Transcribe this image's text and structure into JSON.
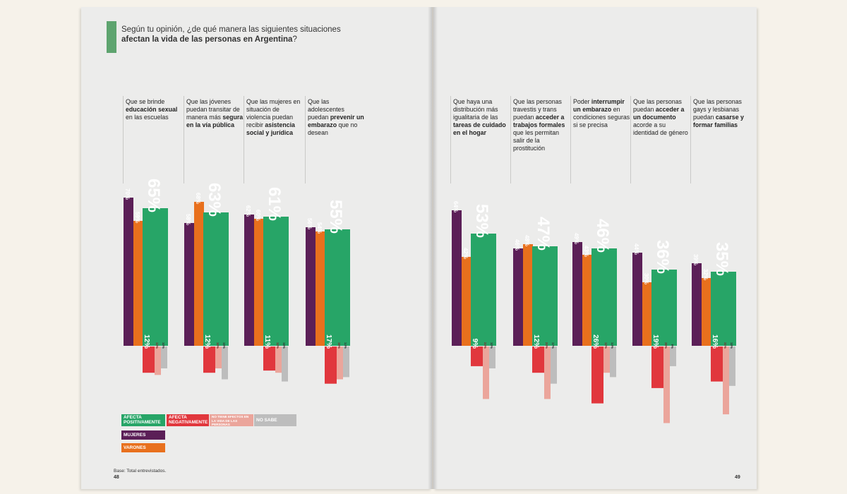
{
  "title": {
    "line1": "Según tu opinión, ¿de qué manera las siguientes situaciones",
    "line2_bold": "afectan la vida de las personas en Argentina",
    "line2_end": "?"
  },
  "base_note": "Base: Total entrevistados.",
  "page_left": "48",
  "page_right": "49",
  "legend": {
    "positive": "AFECTA POSITIVAMENTE",
    "negative": "AFECTA NEGATIVAMENTE",
    "no_effect": "NO TIENE EFECTOS EN LA VIDA DE LAS PERSONAS",
    "no_sabe": "NO SABE",
    "mujeres": "MUJERES",
    "varones": "VARONES"
  },
  "colors": {
    "positive": "#27a567",
    "negative": "#e1373d",
    "mujeres": "#5b1f57",
    "varones": "#e8701d",
    "no_effect": "#eba59b",
    "no_sabe": "#bdbdbd"
  },
  "chart_data": {
    "type": "bar",
    "categories": [
      {
        "pre": "Que se brinde ",
        "bold": "educación sexual",
        "post": " en las escuelas"
      },
      {
        "pre": "Que las jóvenes puedan transitar de manera más ",
        "bold": "segura en la vía pública",
        "post": ""
      },
      {
        "pre": "Que las mujeres en situación de violencia puedan recibir ",
        "bold": "asistencia social y jurídica",
        "post": ""
      },
      {
        "pre": "Que las adolescentes puedan ",
        "bold": "prevenir un embarazo",
        "post": " que no desean"
      },
      {
        "pre": "Que haya una distribución más igualitaria de las ",
        "bold": "tareas de cuidado en el hogar",
        "post": ""
      },
      {
        "pre": "Que las personas travestis y trans puedan ",
        "bold": "acceder a trabajos formales",
        "post": " que les permitan salir de la prostitución"
      },
      {
        "pre": "Poder ",
        "bold": "interrumpir un embarazo",
        "post": " en condiciones seguras si se precisa"
      },
      {
        "pre": "Que las personas puedan ",
        "bold": "acceder a un documento",
        "post": " acorde a su identidad de género"
      },
      {
        "pre": "Que las personas gays y lesbianas puedan ",
        "bold": "casarse y formar familias",
        "post": ""
      }
    ],
    "series": [
      {
        "name": "MUJERES",
        "values": [
          70,
          58,
          62,
          56,
          64,
          46,
          49,
          44,
          39
        ]
      },
      {
        "name": "VARONES",
        "values": [
          59,
          68,
          60,
          54,
          42,
          48,
          43,
          30,
          32
        ]
      },
      {
        "name": "AFECTA POSITIVAMENTE",
        "values": [
          65,
          63,
          61,
          55,
          53,
          47,
          46,
          36,
          35
        ]
      },
      {
        "name": "AFECTA NEGATIVAMENTE",
        "values": [
          12,
          12,
          11,
          17,
          9,
          12,
          26,
          19,
          16
        ]
      },
      {
        "name": "NO TIENE EFECTOS EN LA VIDA DE LAS PERSONAS",
        "values": [
          13,
          10,
          12,
          15,
          24,
          24,
          12,
          35,
          31
        ]
      },
      {
        "name": "NO SABE",
        "values": [
          10,
          15,
          16,
          14,
          10,
          17,
          14,
          9,
          18
        ]
      }
    ],
    "labels": {
      "mujeres": [
        "70%",
        "58%",
        "62%",
        "56%",
        "64%",
        "46%",
        "49%",
        "44%",
        "39%"
      ],
      "varones": [
        "59%",
        "68%",
        "60%",
        "54%",
        "42%",
        "48%",
        "43%",
        "30%",
        "32%"
      ],
      "positive": [
        "65%",
        "63%",
        "61%",
        "55%",
        "53%",
        "47%",
        "46%",
        "36%",
        "35%"
      ],
      "negative": [
        "12%",
        "12%",
        "11%",
        "17%",
        "9%",
        "12%",
        "26%",
        "19%",
        "16%"
      ],
      "no_effect": [
        "13%",
        "10%",
        "12%",
        "15%",
        "24%",
        "24%",
        "12%",
        "35%",
        "31%"
      ],
      "no_sabe": [
        "10%",
        "15%",
        "16%",
        "14%",
        "10%",
        "17%",
        "14%",
        "9%",
        "18%"
      ]
    }
  }
}
